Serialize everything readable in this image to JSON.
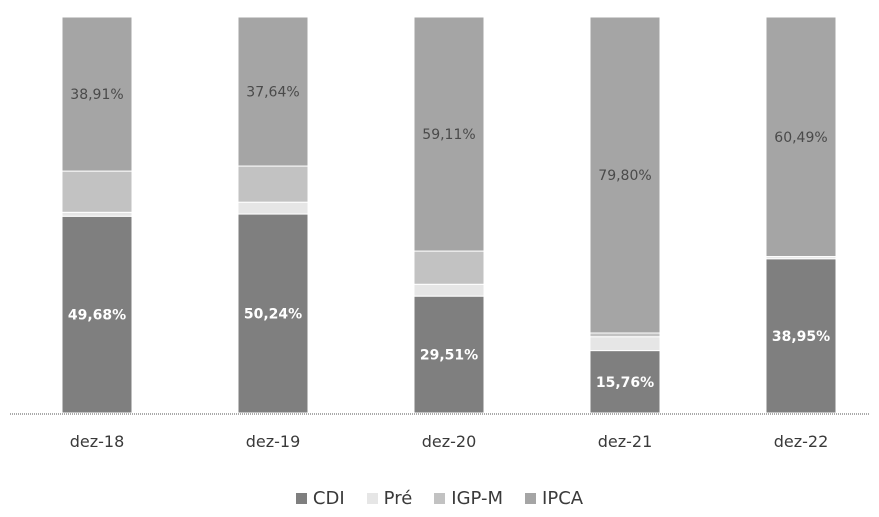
{
  "chart_data": {
    "type": "bar",
    "stacked": true,
    "normalized_to": 100,
    "categories": [
      "dez-18",
      "dez-19",
      "dez-20",
      "dez-21",
      "dez-22"
    ],
    "series": [
      {
        "name": "CDI",
        "color": "#7f7f7f",
        "values": [
          49.68,
          50.24,
          29.51,
          15.76,
          38.95
        ],
        "labels": [
          "49,68%",
          "50,24%",
          "29,51%",
          "15,76%",
          "38,95%"
        ]
      },
      {
        "name": "Pré",
        "color": "#e6e6e6",
        "values": [
          1.0,
          3.0,
          3.0,
          3.5,
          0.56
        ],
        "labels": [
          "",
          "",
          "",
          "",
          ""
        ]
      },
      {
        "name": "IGP-M",
        "color": "#c2c2c2",
        "values": [
          10.41,
          9.12,
          8.38,
          0.94,
          0.0
        ],
        "labels": [
          "",
          "",
          "",
          "",
          ""
        ]
      },
      {
        "name": "IPCA",
        "color": "#a5a5a5",
        "values": [
          38.91,
          37.64,
          59.11,
          79.8,
          60.49
        ],
        "labels": [
          "38,91%",
          "37,64%",
          "59,11%",
          "79,80%",
          "60,49%"
        ]
      }
    ],
    "ylim": [
      0,
      100
    ],
    "grid": false,
    "legend_position": "bottom",
    "title": "",
    "xlabel": "",
    "ylabel": ""
  }
}
